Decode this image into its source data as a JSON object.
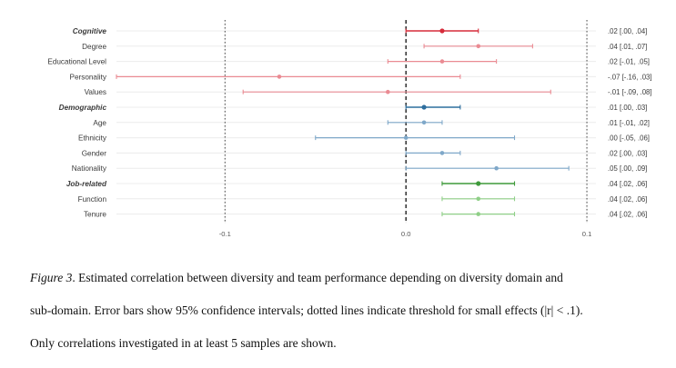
{
  "chart_data": {
    "type": "forest",
    "x_ticks": [
      -0.1,
      0.0,
      0.1
    ],
    "x_tick_labels": [
      "-0.1",
      "0.0",
      "0.1"
    ],
    "xlim": [
      -0.16,
      0.105
    ],
    "threshold_lines": [
      -0.1,
      0.1
    ],
    "zero_line": 0.0,
    "grid": true,
    "rows": [
      {
        "label": "Cognitive",
        "group": "cognitive",
        "header": true,
        "est": 0.02,
        "lo": 0.0,
        "hi": 0.04,
        "text": ".02 [.00, .04]"
      },
      {
        "label": "Degree",
        "group": "cognitive",
        "header": false,
        "est": 0.04,
        "lo": 0.01,
        "hi": 0.07,
        "text": ".04 [.01, .07]"
      },
      {
        "label": "Educational Level",
        "group": "cognitive",
        "header": false,
        "est": 0.02,
        "lo": -0.01,
        "hi": 0.05,
        "text": ".02 [-.01, .05]"
      },
      {
        "label": "Personality",
        "group": "cognitive",
        "header": false,
        "est": -0.07,
        "lo": -0.16,
        "hi": 0.03,
        "text": "-.07 [-.16, .03]"
      },
      {
        "label": "Values",
        "group": "cognitive",
        "header": false,
        "est": -0.01,
        "lo": -0.09,
        "hi": 0.08,
        "text": "-.01 [-.09, .08]"
      },
      {
        "label": "Demographic",
        "group": "demographic",
        "header": true,
        "est": 0.01,
        "lo": 0.0,
        "hi": 0.03,
        "text": ".01 [.00, .03]"
      },
      {
        "label": "Age",
        "group": "demographic",
        "header": false,
        "est": 0.01,
        "lo": -0.01,
        "hi": 0.02,
        "text": ".01 [-.01, .02]"
      },
      {
        "label": "Ethnicity",
        "group": "demographic",
        "header": false,
        "est": 0.0,
        "lo": -0.05,
        "hi": 0.06,
        "text": ".00 [-.05, .06]"
      },
      {
        "label": "Gender",
        "group": "demographic",
        "header": false,
        "est": 0.02,
        "lo": 0.0,
        "hi": 0.03,
        "text": ".02 [.00, .03]"
      },
      {
        "label": "Nationality",
        "group": "demographic",
        "header": false,
        "est": 0.05,
        "lo": 0.0,
        "hi": 0.09,
        "text": ".05 [.00, .09]"
      },
      {
        "label": "Job-related",
        "group": "job",
        "header": true,
        "est": 0.04,
        "lo": 0.02,
        "hi": 0.06,
        "text": ".04 [.02, .06]"
      },
      {
        "label": "Function",
        "group": "job",
        "header": false,
        "est": 0.04,
        "lo": 0.02,
        "hi": 0.06,
        "text": ".04 [.02, .06]"
      },
      {
        "label": "Tenure",
        "group": "job",
        "header": false,
        "est": 0.04,
        "lo": 0.02,
        "hi": 0.06,
        "text": ".04 [.02, .06]"
      }
    ]
  },
  "colors": {
    "cognitive_header": "#d62b3a",
    "cognitive": "#ea8b93",
    "demographic_header": "#2d6e9e",
    "demographic": "#7fa8c9",
    "job_header": "#3e9a3a",
    "job": "#8fcf87",
    "grid": "#ececec",
    "threshold": "#555555",
    "zero": "#111111",
    "label_text": "#3a3a3a",
    "ci_text": "#3a3a3a",
    "tick_text": "#555555"
  },
  "caption": {
    "figure_label": "Figure 3",
    "line1_rest": ". Estimated correlation between diversity and team performance depending on diversity domain and",
    "line2": "sub-domain. Error bars show 95% confidence intervals; dotted lines indicate threshold for small effects (|r| < .1).",
    "line3": "Only correlations investigated in at least 5 samples are shown."
  }
}
